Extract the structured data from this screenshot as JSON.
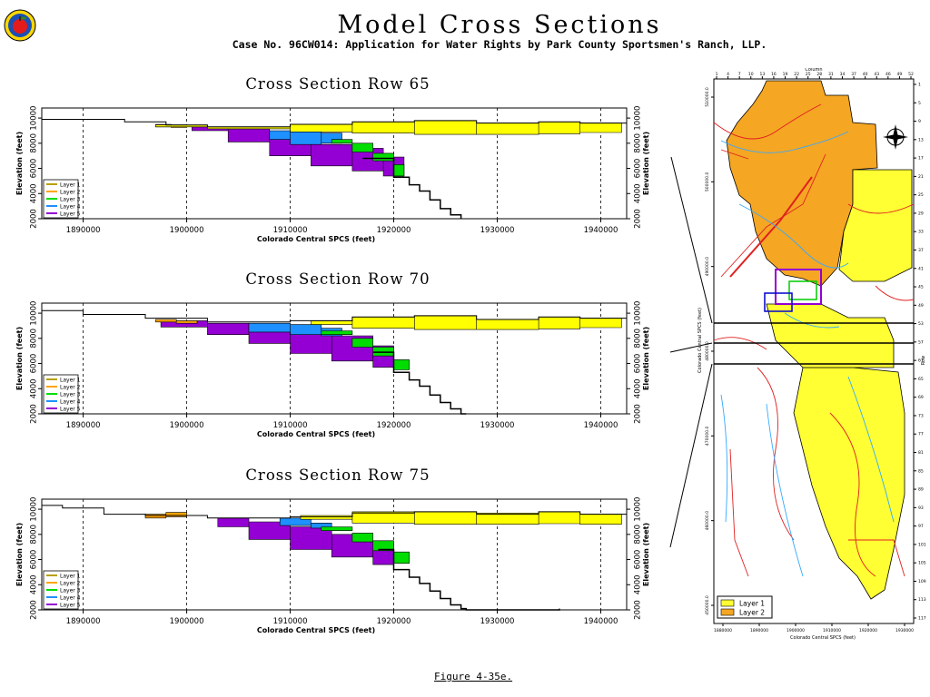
{
  "header": {
    "title": "Model Cross Sections",
    "subtitle": "Case No. 96CW014: Application for Water Rights by Park County Sportsmen's Ranch, LLP."
  },
  "figure_label": "Figure 4-35e.",
  "colors": {
    "layer1": "#ffff00",
    "layer2": "#ffa500",
    "layer3": "#00dd00",
    "layer4": "#1e90ff",
    "layer5": "#9400d3"
  },
  "chart_data": [
    {
      "type": "area",
      "title": "Cross Section Row 65",
      "xlabel": "Colorado Central SPCS (feet)",
      "ylabel": "Elevation (feet)",
      "ylabel_right": "Elevation (feet)",
      "xlim": [
        1886000,
        1942500
      ],
      "ylim": [
        2000,
        10800
      ],
      "xticks": [
        1890000,
        1900000,
        1910000,
        1920000,
        1930000,
        1940000
      ],
      "yticks": [
        2000,
        4000,
        6000,
        8000,
        10000
      ],
      "grid": "vertical dashed",
      "legend_position": "bottom-left",
      "legend": [
        "Layer 1",
        "Layer 2",
        "Layer 3",
        "Layer 4",
        "Layer 5"
      ],
      "ground_surface": {
        "x": [
          1886000,
          1894000,
          1898000,
          1902000,
          1910000,
          1916000,
          1922000,
          1928000,
          1934000,
          1938000,
          1942500
        ],
        "y": [
          9900,
          9700,
          9450,
          9300,
          9500,
          9700,
          9800,
          9600,
          9700,
          9600,
          9650
        ]
      },
      "series": [
        {
          "name": "Layer 1",
          "x": [
            1897000,
            1902000,
            1910000,
            1916000,
            1922000,
            1928000,
            1934000,
            1938000,
            1942000
          ],
          "top": [
            9450,
            9300,
            9500,
            9700,
            9800,
            9600,
            9700,
            9600,
            9650
          ],
          "bottom": [
            9300,
            9150,
            8900,
            8800,
            8700,
            8700,
            8750,
            8850,
            8800
          ]
        },
        {
          "name": "Layer 2",
          "x": [
            1897000,
            1898500,
            1900000
          ],
          "top": [
            9500,
            9450,
            9400
          ],
          "bottom": [
            9300,
            9250,
            9300
          ]
        },
        {
          "name": "Layer 3",
          "x": [
            1914000,
            1916000,
            1918000,
            1920000,
            1921000
          ],
          "top": [
            8300,
            8000,
            7200,
            6300,
            5300
          ],
          "bottom": [
            8000,
            7300,
            6600,
            5400,
            4500
          ]
        },
        {
          "name": "Layer 4",
          "x": [
            1908000,
            1910000,
            1913000,
            1915000
          ],
          "top": [
            9000,
            9000,
            8800,
            8400
          ],
          "bottom": [
            8300,
            7900,
            8000,
            8000
          ]
        },
        {
          "name": "Layer 5",
          "x": [
            1900500,
            1904000,
            1908000,
            1912000,
            1916000,
            1919000,
            1921000
          ],
          "top": [
            9300,
            9150,
            8800,
            7900,
            7600,
            6900,
            5400
          ],
          "bottom": [
            9000,
            8100,
            7000,
            6200,
            5800,
            5400,
            4800
          ]
        }
      ],
      "basement_profile": {
        "x": [
          1917000,
          1920000,
          1921500,
          1922500,
          1923500,
          1924500,
          1925500,
          1926500
        ],
        "y": [
          6800,
          5300,
          4700,
          4200,
          3500,
          2800,
          2300,
          2000
        ]
      }
    },
    {
      "type": "area",
      "title": "Cross Section Row 70",
      "xlabel": "Colorado Central SPCS (feet)",
      "ylabel": "Elevation (feet)",
      "ylabel_right": "Elevation (feet)",
      "xlim": [
        1886000,
        1942500
      ],
      "ylim": [
        2000,
        10800
      ],
      "xticks": [
        1890000,
        1900000,
        1910000,
        1920000,
        1930000,
        1940000
      ],
      "yticks": [
        2000,
        4000,
        6000,
        8000,
        10000
      ],
      "grid": "vertical dashed",
      "legend_position": "bottom-left",
      "legend": [
        "Layer 1",
        "Layer 2",
        "Layer 3",
        "Layer 4",
        "Layer 5"
      ],
      "ground_surface": {
        "x": [
          1886000,
          1890000,
          1896000,
          1902000,
          1910000,
          1916000,
          1922000,
          1928000,
          1934000,
          1938000,
          1942500
        ],
        "y": [
          10200,
          9900,
          9600,
          9300,
          9400,
          9700,
          9800,
          9500,
          9700,
          9600,
          9450
        ]
      },
      "series": [
        {
          "name": "Layer 1",
          "x": [
            1912000,
            1916000,
            1922000,
            1928000,
            1934000,
            1938000,
            1942000
          ],
          "top": [
            9400,
            9700,
            9800,
            9500,
            9700,
            9600,
            9450
          ],
          "bottom": [
            9100,
            8800,
            8700,
            8700,
            8750,
            8850,
            8700
          ]
        },
        {
          "name": "Layer 2",
          "x": [
            1897000,
            1899000,
            1901000
          ],
          "top": [
            9500,
            9400,
            9350
          ],
          "bottom": [
            9300,
            9200,
            9250
          ]
        },
        {
          "name": "Layer 3",
          "x": [
            1913000,
            1916000,
            1918000,
            1920000,
            1921500
          ],
          "top": [
            8600,
            8000,
            7300,
            6300,
            5100
          ],
          "bottom": [
            8300,
            7300,
            6600,
            5500,
            4500
          ]
        },
        {
          "name": "Layer 4",
          "x": [
            1906000,
            1910000,
            1913000,
            1915000
          ],
          "top": [
            9200,
            9100,
            8800,
            8500
          ],
          "bottom": [
            8500,
            8300,
            8200,
            8200
          ]
        },
        {
          "name": "Layer 5",
          "x": [
            1897500,
            1902000,
            1906000,
            1910000,
            1914000,
            1918000,
            1920000
          ],
          "top": [
            9400,
            9200,
            8900,
            8600,
            8200,
            7400,
            6000
          ],
          "bottom": [
            8900,
            8300,
            7600,
            6800,
            6200,
            5700,
            5300
          ]
        }
      ],
      "basement_profile": {
        "x": [
          1918000,
          1920000,
          1921500,
          1922500,
          1923500,
          1924500,
          1925500,
          1926500,
          1927000
        ],
        "y": [
          6900,
          5300,
          4700,
          4200,
          3500,
          2900,
          2400,
          2000,
          2000
        ]
      }
    },
    {
      "type": "area",
      "title": "Cross Section Row 75",
      "xlabel": "Colorado Central SPCS (feet)",
      "ylabel": "Elevation (feet)",
      "ylabel_right": "Elevation (feet)",
      "xlim": [
        1886000,
        1942500
      ],
      "ylim": [
        2000,
        10800
      ],
      "xticks": [
        1890000,
        1900000,
        1910000,
        1920000,
        1930000,
        1940000
      ],
      "yticks": [
        2000,
        4000,
        6000,
        8000,
        10000
      ],
      "grid": "vertical dashed",
      "legend_position": "bottom-left",
      "legend": [
        "Layer 1",
        "Layer 2",
        "Layer 3",
        "Layer 4",
        "Layer 5"
      ],
      "ground_surface": {
        "x": [
          1886000,
          1888000,
          1892000,
          1896000,
          1902000,
          1910000,
          1916000,
          1922000,
          1928000,
          1934000,
          1938000,
          1942500
        ],
        "y": [
          10300,
          10100,
          9600,
          9500,
          9300,
          9400,
          9700,
          9800,
          9600,
          9800,
          9600,
          9500
        ]
      },
      "series": [
        {
          "name": "Layer 1",
          "x": [
            1911000,
            1916000,
            1922000,
            1928000,
            1934000,
            1938000,
            1942000
          ],
          "top": [
            9500,
            9800,
            9800,
            9700,
            9800,
            9600,
            9500
          ],
          "bottom": [
            9200,
            8900,
            8800,
            8800,
            8850,
            8800,
            8700
          ]
        },
        {
          "name": "Layer 2",
          "x": [
            1896000,
            1898000,
            1900000
          ],
          "top": [
            9600,
            9750,
            9600
          ],
          "bottom": [
            9300,
            9400,
            9350
          ]
        },
        {
          "name": "Layer 3",
          "x": [
            1913000,
            1916000,
            1918000,
            1920000,
            1921500
          ],
          "top": [
            8600,
            8100,
            7500,
            6600,
            5400
          ],
          "bottom": [
            8300,
            7400,
            6700,
            5700,
            4600
          ]
        },
        {
          "name": "Layer 4",
          "x": [
            1909000,
            1912000,
            1914000
          ],
          "top": [
            9300,
            8900,
            8600
          ],
          "bottom": [
            8700,
            8500,
            8500
          ]
        },
        {
          "name": "Layer 5",
          "x": [
            1903000,
            1906000,
            1910000,
            1914000,
            1918000,
            1920000
          ],
          "top": [
            9300,
            9000,
            8600,
            8000,
            7300,
            6400
          ],
          "bottom": [
            8600,
            7600,
            6800,
            6200,
            5600,
            5200
          ]
        }
      ],
      "basement_profile": {
        "x": [
          1918500,
          1920000,
          1921500,
          1922500,
          1923500,
          1924500,
          1925500,
          1926500,
          1927000,
          1936000
        ],
        "y": [
          6800,
          5200,
          4600,
          4100,
          3500,
          2900,
          2400,
          2100,
          2000,
          2100
        ]
      }
    }
  ],
  "map": {
    "top_axis_title": "Column",
    "top_ticks": [
      "1",
      "4",
      "7",
      "10",
      "13",
      "16",
      "19",
      "22",
      "25",
      "28",
      "31",
      "34",
      "37",
      "40",
      "43",
      "46",
      "49",
      "52"
    ],
    "left_ticks": [
      "510000.0",
      "500000.0",
      "490000.0",
      "480000.0",
      "470000.0",
      "460000.0",
      "450000.0"
    ],
    "bottom_ticks": [
      "1880000",
      "1890000",
      "1900000",
      "1910000",
      "1920000",
      "1930000"
    ],
    "bottom_label": "Colorado Central SPCS (feet)",
    "left_label": "Colorado Central SPCS (feet)",
    "right_label": "Row",
    "right_ticks": [
      "1",
      "5",
      "9",
      "13",
      "17",
      "21",
      "25",
      "29",
      "33",
      "37",
      "41",
      "45",
      "49",
      "53",
      "57",
      "61",
      "65",
      "69",
      "73",
      "77",
      "81",
      "85",
      "89",
      "93",
      "97",
      "101",
      "105",
      "109",
      "113",
      "117"
    ],
    "legend": [
      "Layer 1",
      "Layer 2"
    ]
  }
}
